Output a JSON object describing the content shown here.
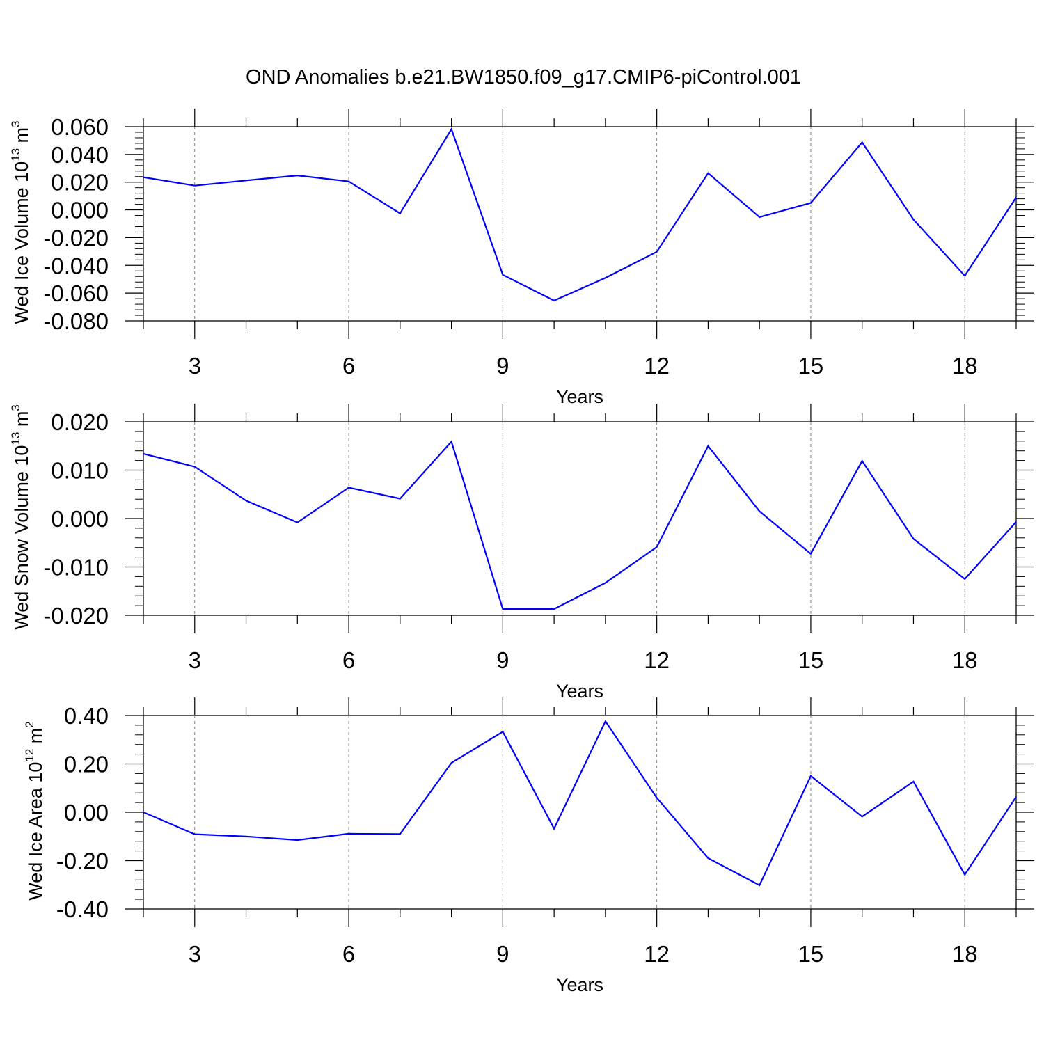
{
  "title": "OND Anomalies b.e21.BW1850.f09_g17.CMIP6-piControl.001",
  "colors": {
    "line": "#0000ff",
    "frame": "#000000",
    "grid": "#7f7f7f",
    "background": "#ffffff"
  },
  "chart_data": [
    {
      "type": "line",
      "ylabel": "Wed Ice Volume 10^13 m^3",
      "ylabel_base": "Wed Ice Volume 10",
      "ylabel_exp": "13",
      "ylabel_unit": "m",
      "ylabel_unit_exp": "3",
      "xlabel": "Years",
      "xlim": [
        2,
        19
      ],
      "ylim": [
        -0.08,
        0.06
      ],
      "x_ticks": [
        3,
        6,
        9,
        12,
        15,
        18
      ],
      "x_tick_labels": [
        "3",
        "6",
        "9",
        "12",
        "15",
        "18"
      ],
      "y_ticks": [
        -0.08,
        -0.06,
        -0.04,
        -0.02,
        0.0,
        0.02,
        0.04,
        0.06
      ],
      "y_tick_labels": [
        "-0.080",
        "-0.060",
        "-0.040",
        "-0.020",
        "0.000",
        "0.020",
        "0.040",
        "0.060"
      ],
      "grid": "vertical dashed at major x ticks",
      "series": [
        {
          "x": [
            2,
            3,
            4,
            5,
            6,
            7,
            8,
            9,
            10,
            11,
            12,
            13,
            14,
            15,
            16,
            17,
            18,
            19
          ],
          "values": [
            0.0235,
            0.0175,
            0.0212,
            0.0248,
            0.0205,
            -0.0025,
            0.0582,
            -0.0468,
            -0.0654,
            -0.049,
            -0.0302,
            0.0265,
            -0.0052,
            0.005,
            0.0487,
            -0.007,
            -0.0475,
            0.009
          ]
        }
      ]
    },
    {
      "type": "line",
      "ylabel": "Wed Snow Volume 10^13 m^3",
      "ylabel_base": "Wed Snow Volume 10",
      "ylabel_exp": "13",
      "ylabel_unit": "m",
      "ylabel_unit_exp": "3",
      "xlabel": "Years",
      "xlim": [
        2,
        19
      ],
      "ylim": [
        -0.02,
        0.02
      ],
      "x_ticks": [
        3,
        6,
        9,
        12,
        15,
        18
      ],
      "x_tick_labels": [
        "3",
        "6",
        "9",
        "12",
        "15",
        "18"
      ],
      "y_ticks": [
        -0.02,
        -0.01,
        0.0,
        0.01,
        0.02
      ],
      "y_tick_labels": [
        "-0.020",
        "-0.010",
        "0.000",
        "0.010",
        "0.020"
      ],
      "grid": "vertical dashed at major x ticks",
      "series": [
        {
          "x": [
            2,
            3,
            4,
            5,
            6,
            7,
            8,
            9,
            10,
            11,
            12,
            13,
            14,
            15,
            16,
            17,
            18,
            19
          ],
          "values": [
            0.0134,
            0.0107,
            0.0037,
            -0.0008,
            0.0064,
            0.0041,
            0.0159,
            -0.0187,
            -0.0187,
            -0.0133,
            -0.0059,
            0.015,
            0.0015,
            -0.0073,
            0.0119,
            -0.0042,
            -0.0125,
            -0.0007
          ]
        }
      ]
    },
    {
      "type": "line",
      "ylabel": "Wed Ice Area 10^12 m^2",
      "ylabel_base": "Wed Ice Area 10",
      "ylabel_exp": "12",
      "ylabel_unit": "m",
      "ylabel_unit_exp": "2",
      "xlabel": "Years",
      "xlim": [
        2,
        19
      ],
      "ylim": [
        -0.4,
        0.4
      ],
      "x_ticks": [
        3,
        6,
        9,
        12,
        15,
        18
      ],
      "x_tick_labels": [
        "3",
        "6",
        "9",
        "12",
        "15",
        "18"
      ],
      "y_ticks": [
        -0.4,
        -0.2,
        0.0,
        0.2,
        0.4
      ],
      "y_tick_labels": [
        "-0.40",
        "-0.20",
        "0.00",
        "0.20",
        "0.40"
      ],
      "grid": "vertical dashed at major x ticks",
      "series": [
        {
          "x": [
            2,
            3,
            4,
            5,
            6,
            7,
            8,
            9,
            10,
            11,
            12,
            13,
            14,
            15,
            16,
            17,
            18,
            19
          ],
          "values": [
            0.0,
            -0.091,
            -0.1,
            -0.115,
            -0.089,
            -0.09,
            0.204,
            0.333,
            -0.068,
            0.376,
            0.06,
            -0.19,
            -0.302,
            0.15,
            -0.018,
            0.127,
            -0.258,
            0.064
          ]
        }
      ]
    }
  ]
}
